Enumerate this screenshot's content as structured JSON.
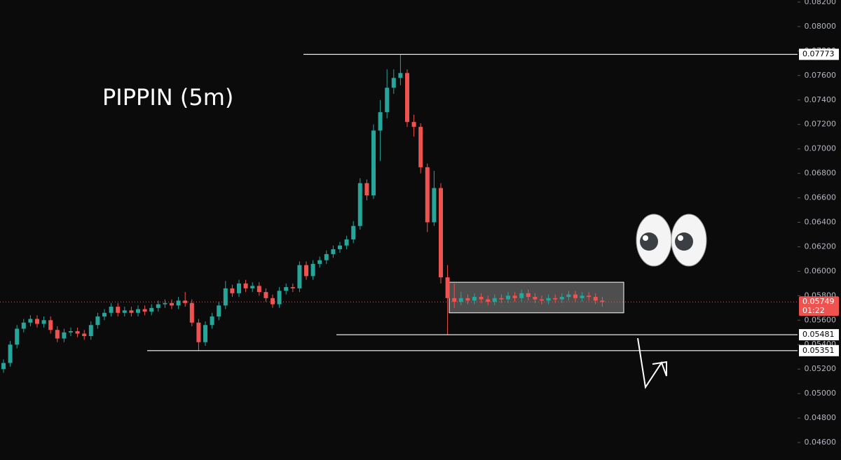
{
  "chart_data": {
    "type": "candlestick",
    "title": "PIPPIN (5m)",
    "up_color": "#26a69a",
    "down_color": "#ef5350",
    "grid": false,
    "ylim": [
      0.04457,
      0.08217
    ],
    "yticks": [
      {
        "value": 0.046,
        "label": "0.04600"
      },
      {
        "value": 0.048,
        "label": "0.04800"
      },
      {
        "value": 0.05,
        "label": "0.05000"
      },
      {
        "value": 0.052,
        "label": "0.05200"
      },
      {
        "value": 0.054,
        "label": "0.05400"
      },
      {
        "value": 0.056,
        "label": "0.05600"
      },
      {
        "value": 0.058,
        "label": "0.05800"
      },
      {
        "value": 0.06,
        "label": "0.06000"
      },
      {
        "value": 0.062,
        "label": "0.06200"
      },
      {
        "value": 0.064,
        "label": "0.06400"
      },
      {
        "value": 0.066,
        "label": "0.06600"
      },
      {
        "value": 0.068,
        "label": "0.06800"
      },
      {
        "value": 0.07,
        "label": "0.07000"
      },
      {
        "value": 0.072,
        "label": "0.07200"
      },
      {
        "value": 0.074,
        "label": "0.07400"
      },
      {
        "value": 0.076,
        "label": "0.07600"
      },
      {
        "value": 0.078,
        "label": "0.07800"
      },
      {
        "value": 0.08,
        "label": "0.08000"
      },
      {
        "value": 0.082,
        "label": "0.08200"
      }
    ],
    "open": [
      0.052,
      0.0525,
      0.054,
      0.0553,
      0.0558,
      0.0561,
      0.0557,
      0.056,
      0.0552,
      0.0545,
      0.055,
      0.0551,
      0.0549,
      0.0547,
      0.0556,
      0.0563,
      0.0566,
      0.0571,
      0.0566,
      0.0568,
      0.0566,
      0.0569,
      0.0567,
      0.057,
      0.0573,
      0.0574,
      0.0572,
      0.0576,
      0.0574,
      0.0558,
      0.0542,
      0.0556,
      0.0563,
      0.0572,
      0.0586,
      0.0582,
      0.059,
      0.0586,
      0.0588,
      0.0583,
      0.0578,
      0.0573,
      0.0584,
      0.0587,
      0.0586,
      0.0605,
      0.0596,
      0.0606,
      0.0609,
      0.0614,
      0.0618,
      0.0621,
      0.0626,
      0.0637,
      0.0672,
      0.0662,
      0.0715,
      0.073,
      0.075,
      0.0758,
      0.0762,
      0.0722,
      0.0718,
      0.0685,
      0.064,
      0.0668,
      0.0595,
      0.0578,
      0.0575,
      0.0578,
      0.0576,
      0.0579,
      0.0577,
      0.0575,
      0.0578,
      0.0577,
      0.058,
      0.0578,
      0.0582,
      0.0579,
      0.0577,
      0.0576,
      0.0578,
      0.0577,
      0.0579,
      0.0581,
      0.0578,
      0.058,
      0.0579,
      0.0576
    ],
    "high": [
      0.0528,
      0.0543,
      0.0556,
      0.0561,
      0.0564,
      0.0564,
      0.0563,
      0.0563,
      0.0555,
      0.0553,
      0.0554,
      0.0554,
      0.0552,
      0.0559,
      0.0566,
      0.0569,
      0.0574,
      0.0574,
      0.0571,
      0.0571,
      0.0572,
      0.0572,
      0.0573,
      0.0576,
      0.0577,
      0.0577,
      0.0579,
      0.0583,
      0.0577,
      0.0561,
      0.0559,
      0.0566,
      0.0575,
      0.0592,
      0.0589,
      0.0593,
      0.0593,
      0.0591,
      0.0591,
      0.0586,
      0.0581,
      0.0587,
      0.059,
      0.059,
      0.0608,
      0.0608,
      0.0609,
      0.0612,
      0.0617,
      0.0621,
      0.0624,
      0.0629,
      0.0641,
      0.0676,
      0.0675,
      0.072,
      0.074,
      0.0765,
      0.0765,
      0.07773,
      0.0765,
      0.0728,
      0.0721,
      0.0688,
      0.0682,
      0.0672,
      0.0605,
      0.059,
      0.0583,
      0.0581,
      0.0582,
      0.0582,
      0.058,
      0.0581,
      0.0581,
      0.0583,
      0.0583,
      0.0585,
      0.0585,
      0.0582,
      0.058,
      0.0581,
      0.0581,
      0.0582,
      0.0584,
      0.0584,
      0.0583,
      0.0583,
      0.0582,
      0.0579
    ],
    "low": [
      0.0517,
      0.0522,
      0.0537,
      0.055,
      0.0555,
      0.0554,
      0.0554,
      0.0549,
      0.0542,
      0.0542,
      0.0547,
      0.0546,
      0.0544,
      0.0544,
      0.0553,
      0.056,
      0.0563,
      0.0563,
      0.0563,
      0.0563,
      0.0563,
      0.0564,
      0.0564,
      0.0567,
      0.057,
      0.0569,
      0.0569,
      0.0571,
      0.0555,
      0.05351,
      0.0539,
      0.0553,
      0.056,
      0.0569,
      0.0579,
      0.0579,
      0.0583,
      0.0583,
      0.058,
      0.0575,
      0.057,
      0.057,
      0.0581,
      0.0583,
      0.0583,
      0.0593,
      0.0593,
      0.0603,
      0.0606,
      0.0611,
      0.0615,
      0.0618,
      0.0623,
      0.0634,
      0.0658,
      0.0659,
      0.069,
      0.0725,
      0.0745,
      0.0752,
      0.0718,
      0.071,
      0.068,
      0.0632,
      0.0637,
      0.059,
      0.05481,
      0.057,
      0.0572,
      0.0573,
      0.0573,
      0.0574,
      0.0572,
      0.0572,
      0.0574,
      0.0574,
      0.0575,
      0.0575,
      0.0576,
      0.0574,
      0.0573,
      0.0573,
      0.0574,
      0.0574,
      0.0576,
      0.0575,
      0.0575,
      0.0576,
      0.0573,
      0.0571
    ],
    "close": [
      0.0525,
      0.054,
      0.0553,
      0.0558,
      0.0561,
      0.0557,
      0.056,
      0.0552,
      0.0545,
      0.055,
      0.0551,
      0.0549,
      0.0547,
      0.0556,
      0.0563,
      0.0566,
      0.0571,
      0.0566,
      0.0568,
      0.0566,
      0.0569,
      0.0567,
      0.057,
      0.0573,
      0.0574,
      0.0572,
      0.0576,
      0.0574,
      0.0558,
      0.0542,
      0.0556,
      0.0563,
      0.0572,
      0.0586,
      0.0582,
      0.059,
      0.0586,
      0.0588,
      0.0583,
      0.0578,
      0.0573,
      0.0584,
      0.0587,
      0.0586,
      0.0605,
      0.0596,
      0.0606,
      0.0609,
      0.0614,
      0.0618,
      0.0621,
      0.0626,
      0.0637,
      0.0672,
      0.0662,
      0.0715,
      0.073,
      0.075,
      0.0758,
      0.0762,
      0.0722,
      0.0718,
      0.0685,
      0.064,
      0.0668,
      0.0595,
      0.0578,
      0.0575,
      0.0578,
      0.0576,
      0.0579,
      0.0577,
      0.0575,
      0.0578,
      0.0577,
      0.058,
      0.0578,
      0.0582,
      0.0579,
      0.0577,
      0.0576,
      0.0578,
      0.0577,
      0.0579,
      0.0581,
      0.0578,
      0.058,
      0.0579,
      0.0576,
      0.05749
    ],
    "levels": [
      {
        "value": 0.07773,
        "label": "0.07773"
      },
      {
        "value": 0.05481,
        "label": "0.05481"
      },
      {
        "value": 0.05351,
        "label": "0.05351"
      }
    ],
    "current_price": {
      "value": 0.05749,
      "label": "0.05749",
      "countdown": "01:22"
    },
    "range_box": {
      "high": 0.0591,
      "low": 0.0566
    }
  }
}
